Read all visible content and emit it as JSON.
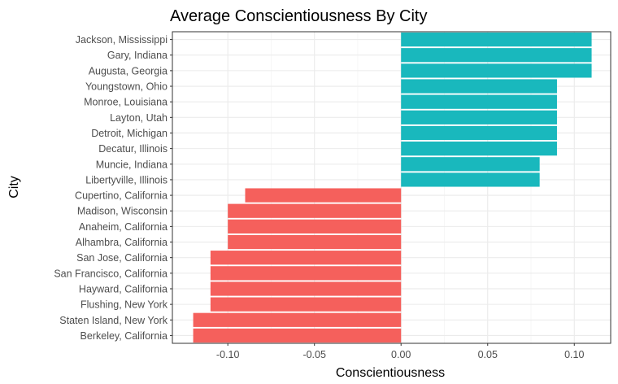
{
  "chart_data": {
    "type": "bar",
    "orientation": "horizontal",
    "title": "Average Conscientiousness By City",
    "xlabel": "Conscientiousness",
    "ylabel": "City",
    "xlim": [
      -0.132,
      0.121
    ],
    "xticks": [
      -0.1,
      -0.05,
      0.0,
      0.05,
      0.1
    ],
    "xtick_labels": [
      "-0.10",
      "-0.05",
      "0.00",
      "0.05",
      "0.10"
    ],
    "grid": true,
    "colors": {
      "positive": "#19B8BD",
      "negative": "#F5605C"
    },
    "categories": [
      "Jackson, Mississippi",
      "Gary, Indiana",
      "Augusta, Georgia",
      "Youngstown, Ohio",
      "Monroe, Louisiana",
      "Layton, Utah",
      "Detroit, Michigan",
      "Decatur, Illinois",
      "Muncie, Indiana",
      "Libertyville, Illinois",
      "Cupertino, California",
      "Madison, Wisconsin",
      "Anaheim, California",
      "Alhambra, California",
      "San Jose, California",
      "San Francisco, California",
      "Hayward, California",
      "Flushing, New York",
      "Staten Island, New York",
      "Berkeley, California"
    ],
    "values": [
      0.11,
      0.11,
      0.11,
      0.09,
      0.09,
      0.09,
      0.09,
      0.09,
      0.08,
      0.08,
      -0.09,
      -0.1,
      -0.1,
      -0.1,
      -0.11,
      -0.11,
      -0.11,
      -0.11,
      -0.12,
      -0.12
    ]
  }
}
